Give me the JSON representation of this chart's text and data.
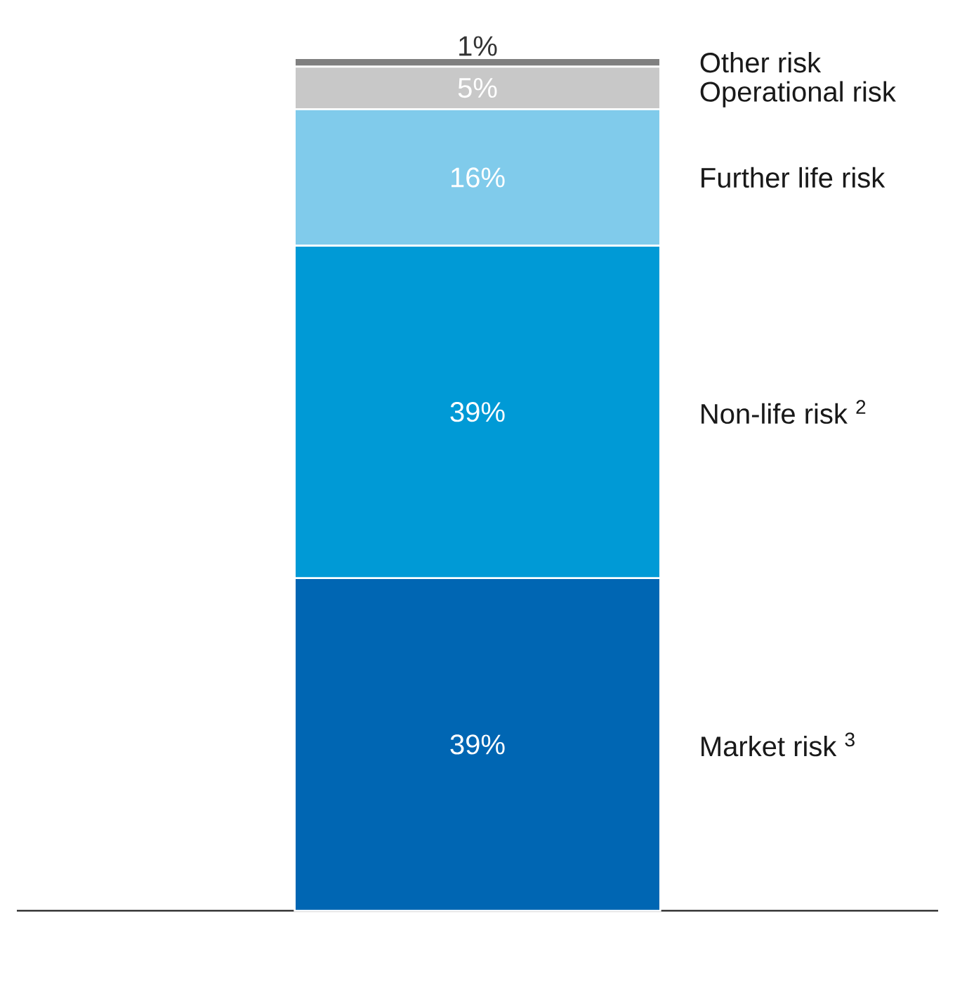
{
  "chart_data": {
    "type": "bar",
    "stacked": true,
    "categories": [
      null
    ],
    "series": [
      {
        "name": "Market risk $^{3}$",
        "color": "#0066b3",
        "values": [
          39
        ],
        "value_labels": [
          "39%"
        ]
      },
      {
        "name": "Non-life risk $^{2}$",
        "color": "#009ad6",
        "values": [
          39
        ],
        "value_labels": [
          "39%"
        ]
      },
      {
        "name": "Further life risk",
        "color": "#80cbeb",
        "values": [
          16
        ],
        "value_labels": [
          "16%"
        ]
      },
      {
        "name": "Operational risk",
        "color": "#c8c8c8",
        "values": [
          5
        ],
        "value_labels": [
          "5%"
        ]
      },
      {
        "name": "Other risk",
        "color": "#808080",
        "values": [
          1
        ],
        "value_labels": [
          "1%"
        ]
      }
    ]
  }
}
